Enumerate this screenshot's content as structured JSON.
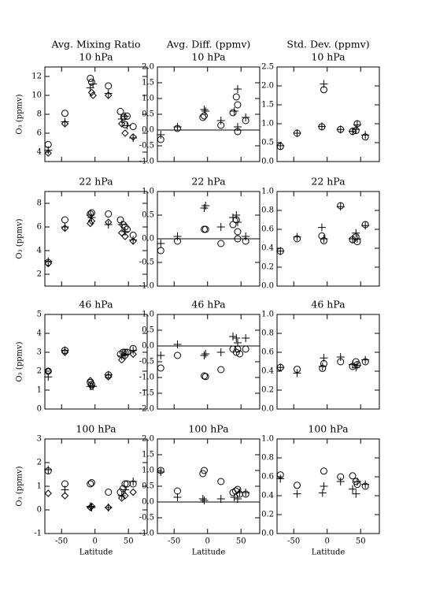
{
  "column_titles": [
    "Avg. Mixing Ratio",
    "Avg. Diff. (ppmv)",
    "Std. Dev. (ppmv)"
  ],
  "chart_data": [
    {
      "type": "scatter",
      "title": "10 hPa",
      "ylabel": "O₃ (ppmv)",
      "xlim": [
        -75,
        78
      ],
      "xticks": [
        -50,
        0,
        50
      ],
      "ylim": [
        3,
        13
      ],
      "yticks": [
        4,
        6,
        8,
        10,
        12
      ],
      "series": [
        {
          "marker": "circle",
          "color": "#000000",
          "x": [
            -70,
            -45,
            -7,
            -5,
            20,
            38,
            43,
            48,
            45,
            57
          ],
          "values": [
            4.8,
            8.1,
            11.8,
            11.4,
            11.0,
            8.3,
            7.7,
            7.8,
            6.9,
            6.7
          ]
        },
        {
          "marker": "plus",
          "color": "#000000",
          "x": [
            -70,
            -45,
            -7,
            -3,
            20,
            40,
            45,
            48,
            57
          ],
          "values": [
            4.2,
            7.2,
            10.8,
            11.2,
            10.2,
            7.5,
            7.8,
            6.8,
            5.5
          ]
        },
        {
          "marker": "diamond",
          "color": "#000000",
          "x": [
            -70,
            -45,
            -5,
            -3,
            20,
            40,
            45,
            57
          ],
          "values": [
            3.9,
            7.0,
            10.3,
            10.0,
            10.0,
            7.0,
            6.0,
            5.6
          ]
        }
      ]
    },
    {
      "type": "scatter",
      "title": "10 hPa",
      "zero_line": true,
      "xlim": [
        -75,
        78
      ],
      "xticks": [
        -50,
        0,
        50
      ],
      "ylim": [
        -1,
        2
      ],
      "yticks": [
        {
          "value": -1,
          "label": "-1.0"
        },
        {
          "value": -0.5,
          "label": "-0.5"
        },
        {
          "value": 0,
          "label": "0.0"
        },
        {
          "value": 0.5,
          "label": "0.5"
        },
        {
          "value": 1,
          "label": "1.0"
        },
        {
          "value": 1.5,
          "label": "1.5"
        },
        {
          "value": 2,
          "label": "2.0"
        }
      ],
      "series": [
        {
          "marker": "circle",
          "color": "#000000",
          "x": [
            -70,
            -45,
            -5,
            -7,
            20,
            38,
            43,
            45,
            45,
            57
          ],
          "values": [
            -0.3,
            0.05,
            0.45,
            0.4,
            0.15,
            0.55,
            1.05,
            0.8,
            -0.05,
            0.3
          ]
        },
        {
          "marker": "plus",
          "color": "#000000",
          "x": [
            -70,
            -45,
            -5,
            -3,
            20,
            40,
            45,
            45,
            57
          ],
          "values": [
            -0.15,
            0.1,
            0.65,
            0.6,
            0.3,
            0.6,
            1.3,
            0.1,
            0.4
          ]
        }
      ]
    },
    {
      "type": "scatter",
      "title": "10 hPa",
      "xlim": [
        -75,
        78
      ],
      "xticks": [
        -50,
        0,
        50
      ],
      "ylim": [
        0,
        2.5
      ],
      "yticks": [
        {
          "value": 0,
          "label": "0.0"
        },
        {
          "value": 0.5,
          "label": "0.5"
        },
        {
          "value": 1,
          "label": "1.0"
        },
        {
          "value": 1.5,
          "label": "1.5"
        },
        {
          "value": 2,
          "label": "2.0"
        },
        {
          "value": 2.5,
          "label": "2.5"
        }
      ],
      "series": [
        {
          "marker": "circle",
          "color": "#000000",
          "x": [
            -70,
            -45,
            -5,
            -8,
            20,
            38,
            43,
            45,
            57
          ],
          "values": [
            0.4,
            0.75,
            1.9,
            0.92,
            0.85,
            0.8,
            0.82,
            1.0,
            0.65
          ]
        },
        {
          "marker": "plus",
          "color": "#000000",
          "x": [
            -70,
            -45,
            -5,
            -8,
            20,
            38,
            43,
            45,
            57
          ],
          "values": [
            0.42,
            0.75,
            2.05,
            0.93,
            0.85,
            0.8,
            0.85,
            0.97,
            0.7
          ]
        }
      ]
    },
    {
      "type": "scatter",
      "title": "22 hPa",
      "ylabel": "O₃ (ppmv)",
      "xlim": [
        -75,
        78
      ],
      "xticks": [
        -50,
        0,
        50
      ],
      "ylim": [
        1,
        9
      ],
      "yticks": [
        2,
        4,
        6,
        8
      ],
      "series": [
        {
          "marker": "circle",
          "color": "#000000",
          "x": [
            -70,
            -45,
            -7,
            -5,
            20,
            38,
            42,
            45,
            48,
            57
          ],
          "values": [
            3.0,
            6.6,
            7.1,
            7.2,
            7.1,
            6.6,
            6.2,
            6.0,
            5.8,
            5.3
          ]
        },
        {
          "marker": "plus",
          "color": "#000000",
          "x": [
            -70,
            -45,
            -7,
            -5,
            20,
            40,
            45,
            57
          ],
          "values": [
            3.1,
            6.0,
            7.0,
            6.8,
            6.2,
            6.2,
            5.6,
            4.9
          ]
        },
        {
          "marker": "diamond",
          "color": "#000000",
          "x": [
            -70,
            -45,
            -7,
            -5,
            20,
            40,
            45,
            57
          ],
          "values": [
            2.9,
            5.9,
            6.3,
            6.5,
            6.4,
            5.5,
            5.2,
            4.8
          ]
        }
      ]
    },
    {
      "type": "scatter",
      "title": "22 hPa",
      "zero_line": true,
      "xlim": [
        -75,
        78
      ],
      "xticks": [
        -50,
        0,
        50
      ],
      "ylim": [
        -1,
        1
      ],
      "yticks": [
        {
          "value": -1,
          "label": "-1.0"
        },
        {
          "value": -0.5,
          "label": "-0.5"
        },
        {
          "value": 0,
          "label": "0.0"
        },
        {
          "value": 0.5,
          "label": "0.5"
        },
        {
          "value": 1,
          "label": "1.0"
        }
      ],
      "series": [
        {
          "marker": "circle",
          "color": "#000000",
          "x": [
            -70,
            -45,
            -5,
            -3,
            20,
            38,
            43,
            45,
            45,
            57
          ],
          "values": [
            -0.25,
            -0.05,
            0.2,
            0.2,
            -0.1,
            0.3,
            0.4,
            0.15,
            0.0,
            -0.05
          ]
        },
        {
          "marker": "plus",
          "color": "#000000",
          "x": [
            -70,
            -45,
            -5,
            -3,
            20,
            38,
            43,
            45,
            57
          ],
          "values": [
            -0.1,
            0.05,
            0.65,
            0.7,
            0.25,
            0.45,
            0.5,
            0.35,
            0.05
          ]
        }
      ]
    },
    {
      "type": "scatter",
      "title": "22 hPa",
      "xlim": [
        -75,
        78
      ],
      "xticks": [
        -50,
        0,
        50
      ],
      "ylim": [
        0,
        1
      ],
      "yticks": [
        {
          "value": 0,
          "label": "0.0"
        },
        {
          "value": 0.2,
          "label": "0.2"
        },
        {
          "value": 0.4,
          "label": "0.4"
        },
        {
          "value": 0.6,
          "label": "0.6"
        },
        {
          "value": 0.8,
          "label": "0.8"
        },
        {
          "value": 1,
          "label": "1.0"
        }
      ],
      "series": [
        {
          "marker": "circle",
          "color": "#000000",
          "x": [
            -70,
            -45,
            -8,
            -5,
            20,
            38,
            43,
            45,
            57
          ],
          "values": [
            0.37,
            0.5,
            0.53,
            0.48,
            0.85,
            0.49,
            0.52,
            0.47,
            0.65
          ]
        },
        {
          "marker": "plus",
          "color": "#000000",
          "x": [
            -70,
            -45,
            -8,
            -5,
            20,
            38,
            43,
            45,
            57
          ],
          "values": [
            0.37,
            0.52,
            0.62,
            0.5,
            0.84,
            0.5,
            0.56,
            0.5,
            0.64
          ]
        }
      ]
    },
    {
      "type": "scatter",
      "title": "46 hPa",
      "ylabel": "O₃ (ppmv)",
      "xlim": [
        -75,
        78
      ],
      "xticks": [
        -50,
        0,
        50
      ],
      "ylim": [
        0,
        5
      ],
      "yticks": [
        0,
        1,
        2,
        3,
        4,
        5
      ],
      "series": [
        {
          "marker": "circle",
          "color": "#000000",
          "x": [
            -70,
            -45,
            -7,
            -5,
            20,
            38,
            42,
            45,
            48,
            57
          ],
          "values": [
            2.0,
            3.1,
            1.4,
            1.3,
            1.8,
            2.9,
            3.0,
            3.0,
            3.0,
            3.2
          ]
        },
        {
          "marker": "plus",
          "color": "#000000",
          "x": [
            -70,
            -45,
            -7,
            -3,
            20,
            40,
            45,
            57
          ],
          "values": [
            1.7,
            3.1,
            1.2,
            1.2,
            1.8,
            2.8,
            2.9,
            3.1
          ]
        },
        {
          "marker": "diamond",
          "color": "#000000",
          "x": [
            -70,
            -45,
            -7,
            -5,
            20,
            40,
            45,
            57
          ],
          "values": [
            2.0,
            3.0,
            1.5,
            1.2,
            1.7,
            2.6,
            2.8,
            2.9
          ]
        }
      ]
    },
    {
      "type": "scatter",
      "title": "46 hPa",
      "zero_line": true,
      "xlim": [
        -75,
        78
      ],
      "xticks": [
        -50,
        0,
        50
      ],
      "ylim": [
        -2,
        1
      ],
      "yticks": [
        {
          "value": -2,
          "label": "-2.0"
        },
        {
          "value": -1.5,
          "label": "-1.5"
        },
        {
          "value": -1,
          "label": "-1.0"
        },
        {
          "value": -0.5,
          "label": "-0.5"
        },
        {
          "value": 0,
          "label": "0.0"
        },
        {
          "value": 0.5,
          "label": "0.5"
        },
        {
          "value": 1,
          "label": "1.0"
        }
      ],
      "series": [
        {
          "marker": "circle",
          "color": "#000000",
          "x": [
            -70,
            -45,
            -5,
            -3,
            20,
            38,
            43,
            45,
            48,
            57
          ],
          "values": [
            -0.7,
            -0.3,
            -0.95,
            -0.97,
            -0.75,
            -0.1,
            -0.2,
            -0.1,
            -0.25,
            -0.1
          ]
        },
        {
          "marker": "plus",
          "color": "#000000",
          "x": [
            -70,
            -45,
            -5,
            -3,
            20,
            38,
            43,
            45,
            57
          ],
          "values": [
            -0.3,
            0.05,
            -0.3,
            -0.25,
            -0.2,
            0.3,
            0.25,
            0.1,
            0.25
          ]
        }
      ]
    },
    {
      "type": "scatter",
      "title": "46 hPa",
      "xlim": [
        -75,
        78
      ],
      "xticks": [
        -50,
        0,
        50
      ],
      "ylim": [
        0,
        1
      ],
      "yticks": [
        {
          "value": 0,
          "label": "0.0"
        },
        {
          "value": 0.2,
          "label": "0.2"
        },
        {
          "value": 0.4,
          "label": "0.4"
        },
        {
          "value": 0.6,
          "label": "0.6"
        },
        {
          "value": 0.8,
          "label": "0.8"
        },
        {
          "value": 1,
          "label": "1.0"
        }
      ],
      "series": [
        {
          "marker": "circle",
          "color": "#000000",
          "x": [
            -70,
            -45,
            -7,
            -5,
            20,
            38,
            43,
            45,
            57
          ],
          "values": [
            0.44,
            0.42,
            0.43,
            0.48,
            0.5,
            0.45,
            0.5,
            0.47,
            0.5
          ]
        },
        {
          "marker": "plus",
          "color": "#000000",
          "x": [
            -70,
            -45,
            -7,
            -5,
            20,
            38,
            43,
            45,
            57
          ],
          "values": [
            0.44,
            0.38,
            0.45,
            0.54,
            0.55,
            0.47,
            0.44,
            0.46,
            0.52
          ]
        }
      ]
    },
    {
      "type": "scatter",
      "title": "100 hPa",
      "ylabel": "O₃ (ppmv)",
      "xlabel": "Latitude",
      "xlim": [
        -75,
        78
      ],
      "xticks": [
        -50,
        0,
        50
      ],
      "ylim": [
        -1,
        3
      ],
      "yticks": [
        -1,
        0,
        1,
        2,
        3
      ],
      "series": [
        {
          "marker": "circle",
          "color": "#000000",
          "x": [
            -70,
            -45,
            -7,
            -5,
            20,
            38,
            42,
            45,
            48,
            57
          ],
          "values": [
            1.65,
            1.1,
            1.1,
            1.15,
            0.75,
            0.75,
            0.9,
            1.1,
            1.1,
            1.1
          ]
        },
        {
          "marker": "plus",
          "color": "#000000",
          "x": [
            -70,
            -45,
            -7,
            -5,
            20,
            40,
            45,
            57
          ],
          "values": [
            1.7,
            0.85,
            0.15,
            0.1,
            0.1,
            0.6,
            0.85,
            1.2
          ]
        },
        {
          "marker": "diamond",
          "color": "#000000",
          "x": [
            -70,
            -45,
            -7,
            -5,
            20,
            40,
            45,
            57
          ],
          "values": [
            0.7,
            0.6,
            0.1,
            0.15,
            0.1,
            0.5,
            0.6,
            0.75
          ]
        }
      ]
    },
    {
      "type": "scatter",
      "title": "100 hPa",
      "xlabel": "Latitude",
      "zero_line": true,
      "xlim": [
        -75,
        78
      ],
      "xticks": [
        -50,
        0,
        50
      ],
      "ylim": [
        -1,
        2
      ],
      "yticks": [
        {
          "value": -1,
          "label": "-1.0"
        },
        {
          "value": -0.5,
          "label": "-0.5"
        },
        {
          "value": 0,
          "label": "0.0"
        },
        {
          "value": 0.5,
          "label": "0.5"
        },
        {
          "value": 1,
          "label": "1.0"
        },
        {
          "value": 1.5,
          "label": "1.5"
        },
        {
          "value": 2,
          "label": "2.0"
        }
      ],
      "series": [
        {
          "marker": "circle",
          "color": "#000000",
          "x": [
            -70,
            -45,
            -7,
            -5,
            20,
            38,
            42,
            45,
            48,
            57
          ],
          "values": [
            1.0,
            0.35,
            0.9,
            1.0,
            0.65,
            0.3,
            0.35,
            0.4,
            0.25,
            0.25
          ]
        },
        {
          "marker": "plus",
          "color": "#000000",
          "x": [
            -70,
            -45,
            -7,
            -5,
            20,
            40,
            45,
            48,
            57
          ],
          "values": [
            0.95,
            0.15,
            0.1,
            0.05,
            0.1,
            0.15,
            0.1,
            0.3,
            0.3
          ]
        }
      ]
    },
    {
      "type": "scatter",
      "title": "100 hPa",
      "xlabel": "Latitude",
      "xlim": [
        -75,
        78
      ],
      "xticks": [
        -50,
        0,
        50
      ],
      "ylim": [
        0,
        1
      ],
      "yticks": [
        {
          "value": 0,
          "label": "0.0"
        },
        {
          "value": 0.2,
          "label": "0.2"
        },
        {
          "value": 0.4,
          "label": "0.4"
        },
        {
          "value": 0.6,
          "label": "0.6"
        },
        {
          "value": 0.8,
          "label": "0.8"
        },
        {
          "value": 1,
          "label": "1.0"
        }
      ],
      "series": [
        {
          "marker": "circle",
          "color": "#000000",
          "x": [
            -70,
            -45,
            -5,
            20,
            38,
            43,
            45,
            57
          ],
          "values": [
            0.62,
            0.51,
            0.66,
            0.6,
            0.61,
            0.55,
            0.52,
            0.5
          ]
        },
        {
          "marker": "plus",
          "color": "#000000",
          "x": [
            -70,
            -45,
            -7,
            -5,
            20,
            38,
            43,
            45,
            57
          ],
          "values": [
            0.58,
            0.42,
            0.43,
            0.5,
            0.55,
            0.47,
            0.42,
            0.55,
            0.52
          ]
        }
      ]
    }
  ]
}
